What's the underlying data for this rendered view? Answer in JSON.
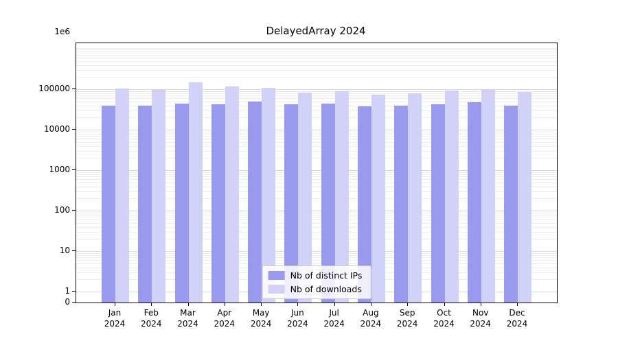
{
  "title": "DelayedArray 2024",
  "colors": {
    "distinct_ips_bar": "#9999ee",
    "downloads_bar": "#d2d2f8",
    "grid_major": "#d6d6d6",
    "grid_minor": "#ececec",
    "axis": "#000000"
  },
  "chart_data": {
    "type": "bar",
    "scale": "log",
    "title": "DelayedArray 2024",
    "categories": [
      "Jan 2024",
      "Feb 2024",
      "Mar 2024",
      "Apr 2024",
      "May 2024",
      "Jun 2024",
      "Jul 2024",
      "Aug 2024",
      "Sep 2024",
      "Oct 2024",
      "Nov 2024",
      "Dec 2024"
    ],
    "series": [
      {
        "name": "Nb of distinct IPs",
        "color": "#9999ee",
        "values": [
          40000,
          39000,
          45000,
          42000,
          50000,
          42000,
          45000,
          38000,
          40000,
          43000,
          47000,
          40000
        ]
      },
      {
        "name": "Nb of downloads",
        "color": "#d2d2f8",
        "values": [
          105000,
          98000,
          150000,
          115000,
          110000,
          83000,
          88000,
          74000,
          79000,
          91000,
          100000,
          85000
        ]
      }
    ],
    "ylim": [
      0,
      1000000
    ],
    "yticks": [
      {
        "label": "1e6",
        "value": 1000000,
        "offset": true
      },
      {
        "label": "100000",
        "value": 100000
      },
      {
        "label": "10000",
        "value": 10000
      },
      {
        "label": "1000",
        "value": 1000
      },
      {
        "label": "100",
        "value": 100
      },
      {
        "label": "10",
        "value": 10
      },
      {
        "label": "1",
        "value": 1
      },
      {
        "label": "0",
        "value": 0
      }
    ],
    "grid": true,
    "legend_position": "bottom-center"
  }
}
